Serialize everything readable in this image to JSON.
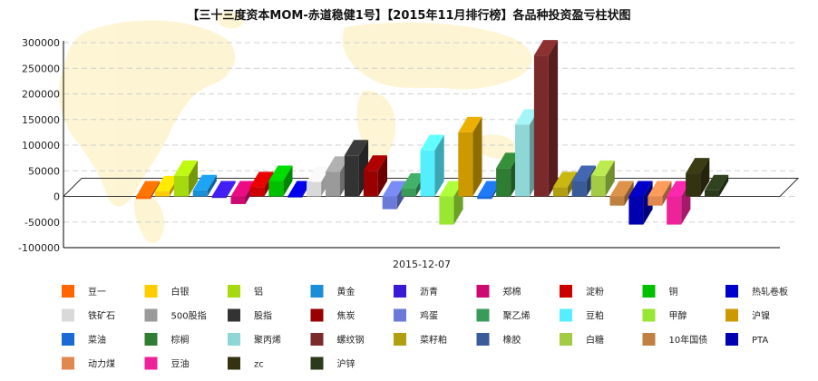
{
  "chart_data": {
    "type": "bar",
    "title": "【三十三度资本MOM-赤道稳健1号】【2015年11月排行榜】各品种投资盈亏柱状图",
    "categories": [
      "2015-12-07"
    ],
    "ylim": [
      -100000,
      300000
    ],
    "yticks": [
      "300000",
      "250000",
      "200000",
      "150000",
      "100000",
      "50000",
      "0",
      "-50000",
      "-100000"
    ],
    "ytick_values": [
      300000,
      250000,
      200000,
      150000,
      100000,
      50000,
      0,
      -50000,
      -100000
    ],
    "grid": true,
    "legend_position": "bottom",
    "series": [
      {
        "name": "豆一",
        "value": -5000,
        "color": "#ff6600"
      },
      {
        "name": "白银",
        "value": 10000,
        "color": "#ffcc00"
      },
      {
        "name": "铝",
        "value": 40000,
        "color": "#a6d90e"
      },
      {
        "name": "黄金",
        "value": 12000,
        "color": "#1a8fd6"
      },
      {
        "name": "沥青",
        "value": -3000,
        "color": "#3a1ad6"
      },
      {
        "name": "郑棉",
        "value": -15000,
        "color": "#cc0a72"
      },
      {
        "name": "淀粉",
        "value": 18000,
        "color": "#cc0000"
      },
      {
        "name": "铜",
        "value": 30000,
        "color": "#00c000"
      },
      {
        "name": "热轧卷板",
        "value": -2000,
        "color": "#0000cc"
      },
      {
        "name": "铁矿石",
        "value": 28000,
        "color": "#d9d9d9"
      },
      {
        "name": "500股指",
        "value": 48000,
        "color": "#9a9a9a"
      },
      {
        "name": "股指",
        "value": 80000,
        "color": "#333333"
      },
      {
        "name": "焦炭",
        "value": 50000,
        "color": "#990000"
      },
      {
        "name": "鸡蛋",
        "value": -25000,
        "color": "#6a7ad6"
      },
      {
        "name": "聚乙烯",
        "value": 15000,
        "color": "#3a9a5a"
      },
      {
        "name": "豆粕",
        "value": 90000,
        "color": "#55eeff"
      },
      {
        "name": "甲醇",
        "value": -55000,
        "color": "#99e633"
      },
      {
        "name": "沪镍",
        "value": 125000,
        "color": "#cc9900"
      },
      {
        "name": "菜油",
        "value": -5000,
        "color": "#1a6ad6"
      },
      {
        "name": "棕榈",
        "value": 55000,
        "color": "#2e7d32"
      },
      {
        "name": "聚丙烯",
        "value": 140000,
        "color": "#8fd6d6"
      },
      {
        "name": "螺纹钢",
        "value": 275000,
        "color": "#7a2a2a"
      },
      {
        "name": "菜籽粕",
        "value": 18000,
        "color": "#b0a010"
      },
      {
        "name": "橡胶",
        "value": 30000,
        "color": "#3a5a99"
      },
      {
        "name": "白糖",
        "value": 40000,
        "color": "#a3cc44"
      },
      {
        "name": "10年国债",
        "value": -18000,
        "color": "#c08040"
      },
      {
        "name": "PTA",
        "value": -55000,
        "color": "#0000b0"
      },
      {
        "name": "动力煤",
        "value": -18000,
        "color": "#e08850"
      },
      {
        "name": "豆油",
        "value": -55000,
        "color": "#ee2299"
      },
      {
        "name": "zc",
        "value": 45000,
        "color": "#333311"
      },
      {
        "name": "沪锌",
        "value": 12000,
        "color": "#2a3a1a"
      }
    ]
  }
}
